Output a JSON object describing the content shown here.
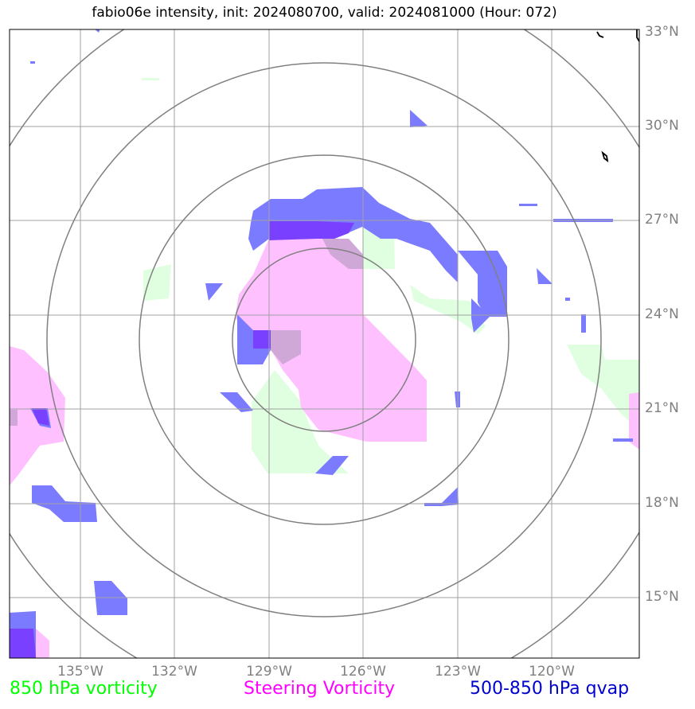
{
  "title": "fabio06e intensity, init: 2024080700, valid: 2024081000 (Hour: 072)",
  "lat_labels": [
    "33°N",
    "30°N",
    "27°N",
    "24°N",
    "21°N",
    "18°N",
    "15°N"
  ],
  "lon_labels": [
    "135°W",
    "132°W",
    "129°W",
    "126°W",
    "123°W",
    "120°W"
  ],
  "legend": [
    {
      "label": "850 hPa vorticity",
      "color": "#00ff00"
    },
    {
      "label": "Steering Vorticity",
      "color": "#ff00ff"
    },
    {
      "label": "500-850 hPa qvap",
      "color": "#0000cc"
    }
  ],
  "colors": {
    "vorticity_850": "#e0ffe0",
    "steering_vorticity": "#ffc0ff",
    "qvap": "#7b7bff",
    "qvap_dark": "#7a40ff",
    "grid": "#a0a0a0",
    "range_ring": "#808080"
  }
}
